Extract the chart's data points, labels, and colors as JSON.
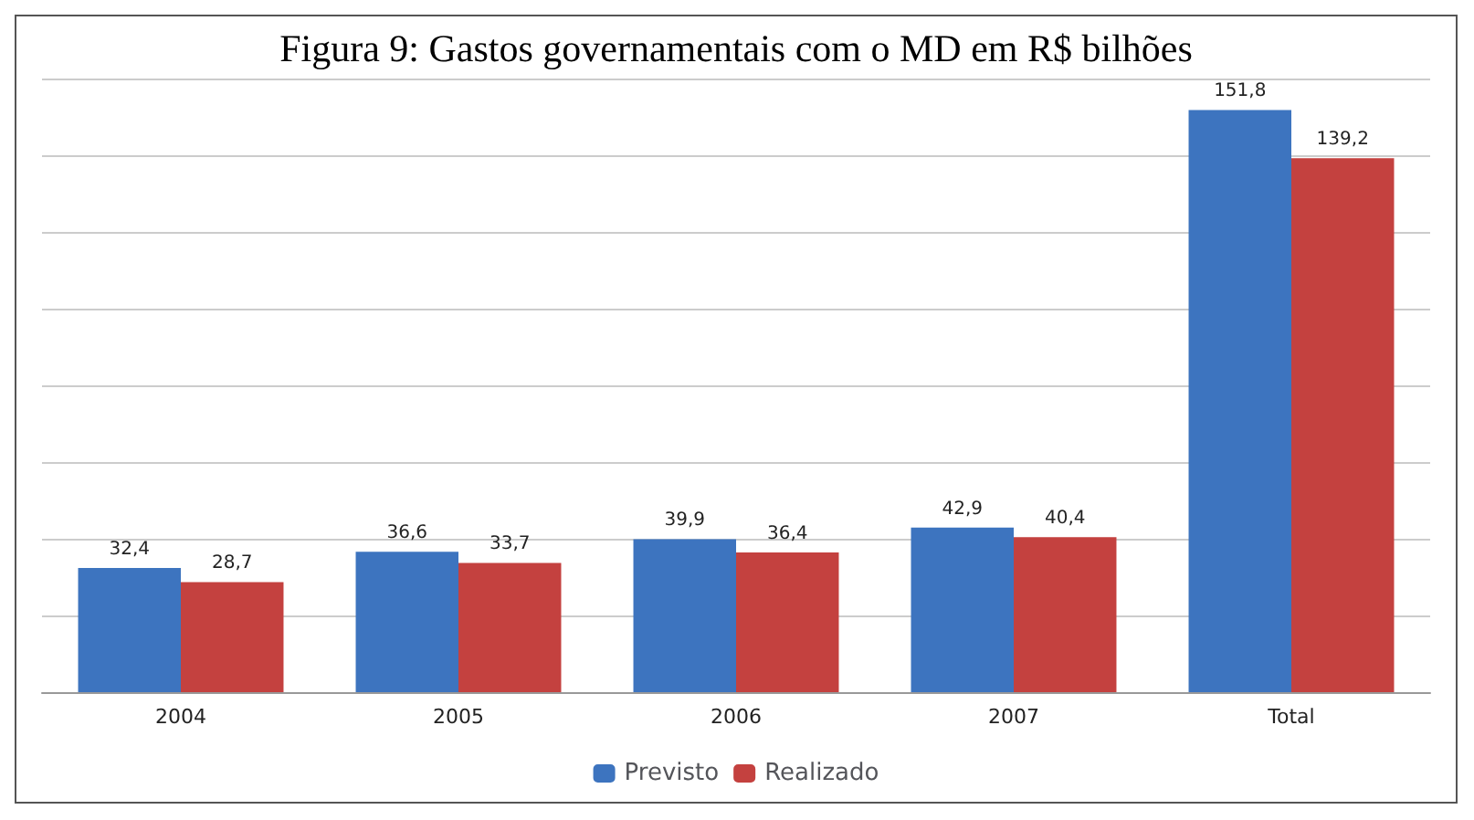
{
  "chart_data": {
    "type": "bar",
    "title": "Figura 9: Gastos governamentais com o MD em R$ bilhões",
    "categories": [
      "2004",
      "2005",
      "2006",
      "2007",
      "Total"
    ],
    "series": [
      {
        "name": "Previsto",
        "color": "#3d74bf",
        "values": [
          32.4,
          36.6,
          39.9,
          42.9,
          151.8
        ],
        "value_labels": [
          "32,4",
          "36,6",
          "39,9",
          "42,9",
          "151,8"
        ]
      },
      {
        "name": "Realizado",
        "color": "#c4413f",
        "values": [
          28.7,
          33.7,
          36.4,
          40.4,
          139.2
        ],
        "value_labels": [
          "28,7",
          "33,7",
          "36,4",
          "40,4",
          "139,2"
        ]
      }
    ],
    "ylim": [
      0,
      160
    ],
    "yticks": [
      {
        "value": 0,
        "label": null
      },
      {
        "value": 20,
        "label": null
      },
      {
        "value": 40,
        "label": null
      },
      {
        "value": 60,
        "label": null
      },
      {
        "value": 80,
        "label": null
      },
      {
        "value": 100,
        "label": null
      },
      {
        "value": 120,
        "label": null
      },
      {
        "value": 140,
        "label": null
      },
      {
        "value": 160,
        "label": null
      }
    ],
    "grid": "y",
    "legend": "bottom",
    "tick_labels": "x"
  }
}
